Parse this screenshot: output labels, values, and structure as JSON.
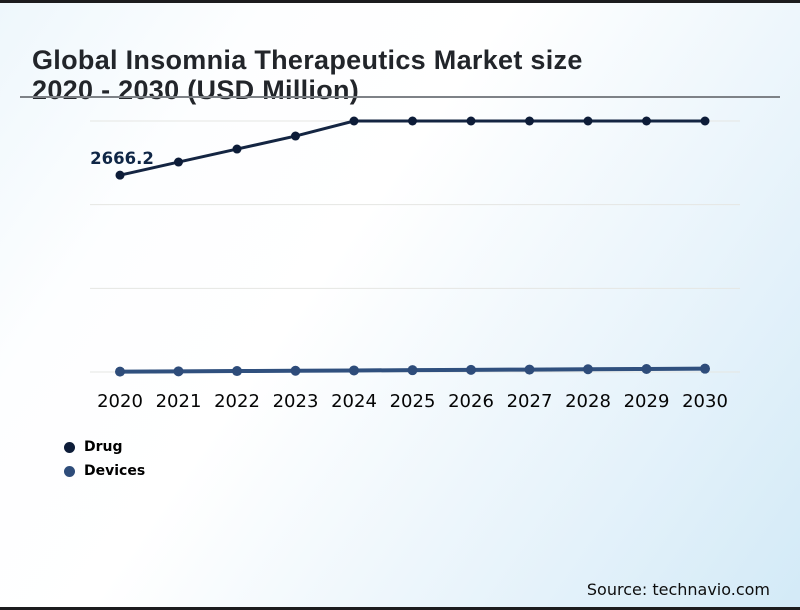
{
  "page": {
    "title_line1": "Global Insomnia Therapeutics Market size",
    "title_line2": "2020 - 2030 (USD Million)",
    "source": "Source: technavio.com"
  },
  "colors": {
    "drug_line": "#142542",
    "drug_dot": "#0d1c38",
    "devices_line": "#30507e",
    "devices_dot": "#2e4c7a",
    "gridline": "#e5e6e3",
    "annotation": "#0f2646",
    "border": "#1c1c1e"
  },
  "chart_data": {
    "type": "line",
    "title": "Global Insomnia Therapeutics Market size 2020 - 2030 (USD Million)",
    "categories": [
      "2020",
      "2021",
      "2022",
      "2023",
      "2024",
      "2025",
      "2026",
      "2027",
      "2028",
      "2029",
      "2030"
    ],
    "series": [
      {
        "name": "Drug",
        "color": "#142542",
        "dot_color": "#0d1c38",
        "values": [
          2666.2,
          2844,
          3020,
          3196,
          3400,
          3400,
          3400,
          3400,
          3400,
          3400,
          3400
        ]
      },
      {
        "name": "Devices",
        "color": "#30507e",
        "dot_color": "#2e4c7a",
        "values": [
          5,
          9,
          13,
          17,
          21,
          25,
          29,
          33,
          37,
          41,
          45
        ]
      }
    ],
    "annotations": [
      {
        "text": "2666.2",
        "series": "Drug",
        "index": 0
      }
    ],
    "xlabel": "",
    "ylabel": "",
    "ylim": [
      0,
      3400
    ],
    "grid": true,
    "gridline_count": 4,
    "legend_position": "bottom-left",
    "source": "Source: technavio.com"
  }
}
